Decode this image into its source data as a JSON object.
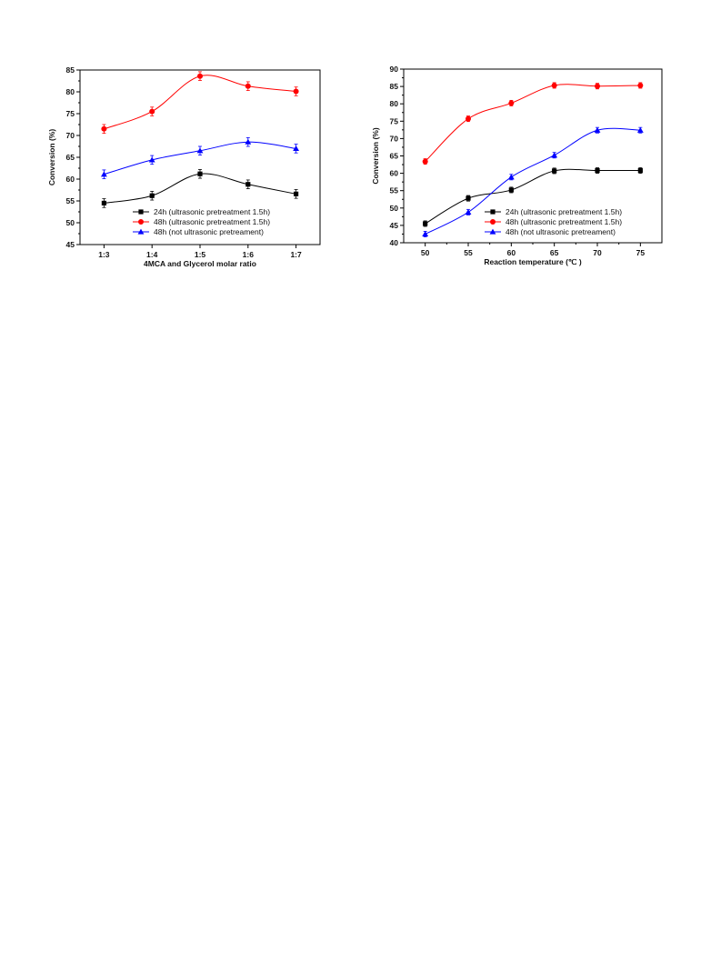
{
  "chart_data": [
    {
      "type": "line",
      "xlabel": "4MCA and  Glycerol molar ratio",
      "ylabel": "Conversion (%)",
      "categories": [
        "1:3",
        "1:4",
        "1:5",
        "1:6",
        "1:7"
      ],
      "ylim": [
        45,
        85
      ],
      "yticks": [
        45,
        50,
        55,
        60,
        65,
        70,
        75,
        80,
        85
      ],
      "legend_position": "bottom-left",
      "grid": false,
      "series": [
        {
          "name": "24h (ultrasonic pretreatment 1.5h)",
          "marker": "square",
          "color": "#000000",
          "values": [
            54.5,
            56.2,
            61.2,
            58.8,
            56.6
          ],
          "error": [
            1.0,
            1.0,
            1.0,
            1.0,
            1.0
          ]
        },
        {
          "name": "48h (ultrasonic pretreatment 1.5h)",
          "marker": "circle",
          "color": "#ff0000",
          "values": [
            71.5,
            75.5,
            83.6,
            81.3,
            80.1
          ],
          "error": [
            1.0,
            1.0,
            1.0,
            1.0,
            1.0
          ]
        },
        {
          "name": "48h (not ultrasonic pretreament)",
          "marker": "triangle",
          "color": "#0000ff",
          "values": [
            61.1,
            64.4,
            66.5,
            68.5,
            67.0
          ],
          "error": [
            1.0,
            1.0,
            1.0,
            1.0,
            1.0
          ]
        }
      ]
    },
    {
      "type": "line",
      "xlabel": "Reaction temperature (℃ )",
      "ylabel": "Conversion (%)",
      "x": [
        50,
        55,
        60,
        65,
        70,
        75
      ],
      "xticks": [
        50,
        55,
        60,
        65,
        70,
        75
      ],
      "xlim": [
        47.5,
        77.5
      ],
      "ylim": [
        40,
        90
      ],
      "yticks": [
        40,
        45,
        50,
        55,
        60,
        65,
        70,
        75,
        80,
        85,
        90
      ],
      "legend_position": "bottom-right",
      "grid": false,
      "series": [
        {
          "name": "24h (ultrasonic pretreatment 1.5h)",
          "marker": "square",
          "color": "#000000",
          "values": [
            45.5,
            52.8,
            55.2,
            60.7,
            60.8,
            60.8
          ],
          "error": [
            0.8,
            0.8,
            0.8,
            0.8,
            0.8,
            0.8
          ]
        },
        {
          "name": "48h (ultrasonic pretreatment 1.5h)",
          "marker": "circle",
          "color": "#ff0000",
          "values": [
            63.4,
            75.7,
            80.2,
            85.3,
            85.1,
            85.3
          ],
          "error": [
            0.8,
            0.8,
            0.8,
            0.8,
            0.8,
            0.8
          ]
        },
        {
          "name": "48h (not ultrasonic pretreament)",
          "marker": "triangle",
          "color": "#0000ff",
          "values": [
            42.5,
            48.8,
            58.9,
            65.2,
            72.4,
            72.4
          ],
          "error": [
            0.8,
            0.8,
            0.8,
            0.8,
            0.8,
            0.8
          ]
        }
      ]
    }
  ]
}
